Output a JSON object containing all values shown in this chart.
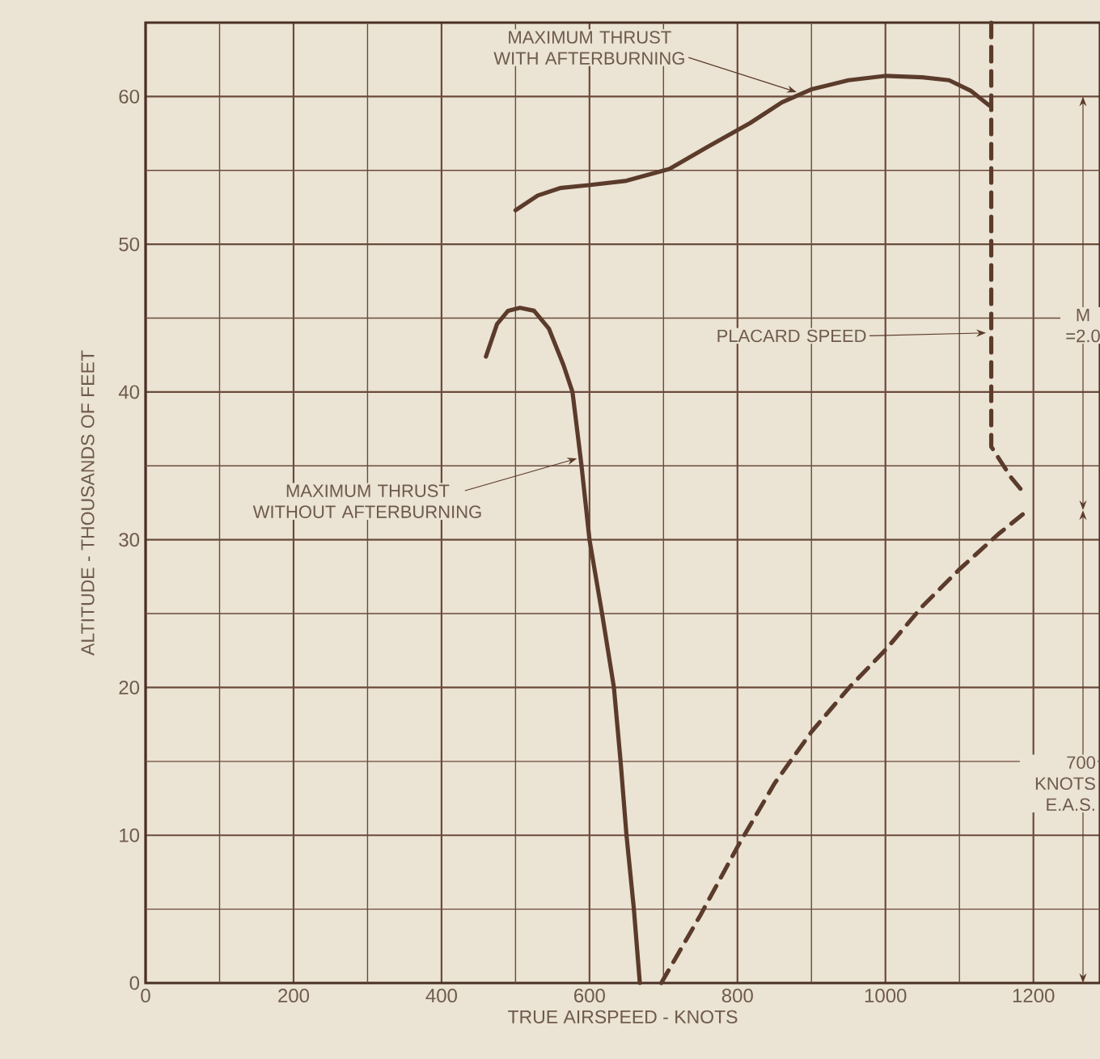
{
  "chart_data": {
    "type": "line",
    "xlabel": "TRUE AIRSPEED - KNOTS",
    "ylabel": "ALTITUDE - THOUSANDS OF FEET",
    "xlim": [
      0,
      1290
    ],
    "ylim": [
      0,
      65
    ],
    "xticks": [
      0,
      {
        "value": 100,
        "label": null
      },
      200,
      {
        "value": 300,
        "label": null
      },
      400,
      {
        "value": 500,
        "label": null
      },
      600,
      {
        "value": 700,
        "label": null
      },
      800,
      {
        "value": 900,
        "label": null
      },
      1000,
      {
        "value": 1100,
        "label": null
      },
      1200
    ],
    "yticks": [
      0,
      {
        "value": 5,
        "label": null
      },
      10,
      {
        "value": 15,
        "label": null
      },
      20,
      {
        "value": 25,
        "label": null
      },
      30,
      {
        "value": 35,
        "label": null
      },
      40,
      {
        "value": 45,
        "label": null
      },
      50,
      {
        "value": 55,
        "label": null
      },
      60
    ],
    "grid": true,
    "marker": "none",
    "series": [
      {
        "color": "#5b3b2b",
        "line_style": "solid",
        "x": [
          460,
          475,
          490,
          506,
          525,
          545,
          565,
          577,
          589,
          600,
          617,
          633,
          642,
          650,
          660,
          668
        ],
        "values": [
          42.4,
          44.6,
          45.5,
          45.7,
          45.5,
          44.3,
          41.8,
          40,
          35.1,
          30,
          25,
          20,
          15,
          10,
          5,
          0
        ]
      },
      {
        "color": "#5b3b2b",
        "line_style": "solid",
        "x": [
          500,
          530,
          560,
          599,
          650,
          708,
          760,
          817,
          860,
          901,
          950,
          1001,
          1050,
          1086,
          1115,
          1140
        ],
        "values": [
          52.3,
          53.3,
          53.8,
          54.0,
          54.3,
          55.1,
          56.6,
          58.2,
          59.6,
          60.5,
          61.1,
          61.4,
          61.3,
          61.1,
          60.4,
          59.4
        ]
      },
      {
        "color": "#5b3b2b",
        "line_style": "dashed",
        "x": [
          697,
          750,
          801,
          850,
          900,
          951,
          1001,
          1050,
          1100,
          1153,
          1195
        ],
        "values": [
          0,
          4.6,
          9.3,
          13.5,
          17,
          20,
          22.6,
          25.5,
          28,
          30.4,
          32.1
        ]
      },
      {
        "color": "#5b3b2b",
        "line_style": "dashed",
        "x": [
          1143,
          1143,
          1170,
          1190
        ],
        "values": [
          65,
          36.3,
          34.2,
          33
        ]
      }
    ],
    "annotations": [
      {
        "text": "MAXIMUM THRUST WITH AFTERBURNING",
        "x": 880,
        "y": 60.3
      },
      {
        "text": "MAXIMUM THRUST WITHOUT AFTERBURNING",
        "x": 583,
        "y": 35.5
      },
      {
        "text": "PLACARD SPEED",
        "x": 1136,
        "y": 44
      },
      "M =2.0",
      "700 KNOTS E.A.S."
    ]
  }
}
